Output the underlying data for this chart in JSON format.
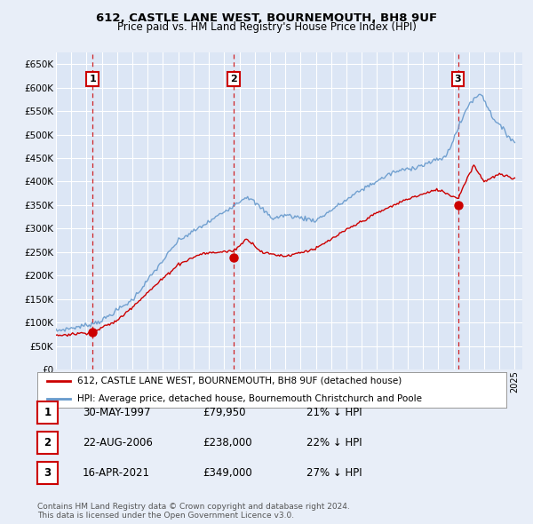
{
  "title": "612, CASTLE LANE WEST, BOURNEMOUTH, BH8 9UF",
  "subtitle": "Price paid vs. HM Land Registry's House Price Index (HPI)",
  "ylim": [
    0,
    675000
  ],
  "yticks": [
    0,
    50000,
    100000,
    150000,
    200000,
    250000,
    300000,
    350000,
    400000,
    450000,
    500000,
    550000,
    600000,
    650000
  ],
  "ytick_labels": [
    "£0",
    "£50K",
    "£100K",
    "£150K",
    "£200K",
    "£250K",
    "£300K",
    "£350K",
    "£400K",
    "£450K",
    "£500K",
    "£550K",
    "£600K",
    "£650K"
  ],
  "xlim_start": 1995.0,
  "xlim_end": 2025.5,
  "background_color": "#e8eef8",
  "plot_bg_color": "#dce6f5",
  "grid_color": "#ffffff",
  "sale_color": "#cc0000",
  "hpi_color": "#6699cc",
  "vline_color": "#cc0000",
  "box_edge_color": "#cc0000",
  "sales": [
    {
      "date_num": 1997.41,
      "price": 79950,
      "label": "1"
    },
    {
      "date_num": 2006.64,
      "price": 238000,
      "label": "2"
    },
    {
      "date_num": 2021.29,
      "price": 349000,
      "label": "3"
    }
  ],
  "legend_entries": [
    "612, CASTLE LANE WEST, BOURNEMOUTH, BH8 9UF (detached house)",
    "HPI: Average price, detached house, Bournemouth Christchurch and Poole"
  ],
  "table_rows": [
    {
      "num": "1",
      "date": "30-MAY-1997",
      "price": "£79,950",
      "note": "21% ↓ HPI"
    },
    {
      "num": "2",
      "date": "22-AUG-2006",
      "price": "£238,000",
      "note": "22% ↓ HPI"
    },
    {
      "num": "3",
      "date": "16-APR-2021",
      "price": "£349,000",
      "note": "27% ↓ HPI"
    }
  ],
  "footer": "Contains HM Land Registry data © Crown copyright and database right 2024.\nThis data is licensed under the Open Government Licence v3.0."
}
